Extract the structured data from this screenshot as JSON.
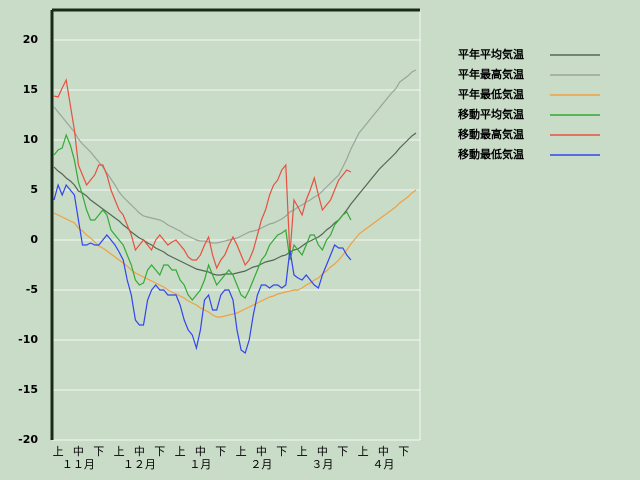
{
  "chart_data": {
    "type": "line",
    "categories": [
      null,
      "上",
      null,
      null,
      null,
      null,
      "中",
      null,
      null,
      null,
      null,
      "下",
      null,
      null,
      null,
      null,
      "上",
      null,
      null,
      null,
      null,
      "中",
      null,
      null,
      null,
      null,
      "下",
      null,
      null,
      null,
      null,
      "上",
      null,
      null,
      null,
      null,
      "中",
      null,
      null,
      null,
      null,
      "下",
      null,
      null,
      null,
      null,
      "上",
      null,
      null,
      null,
      null,
      "中",
      null,
      null,
      null,
      null,
      "下",
      null,
      null,
      null,
      null,
      "上",
      null,
      null,
      null,
      null,
      "中",
      null,
      null,
      null,
      null,
      "下",
      null,
      null,
      null,
      null,
      "上",
      null,
      null,
      null,
      null,
      "中",
      null,
      null,
      null,
      null,
      "下",
      null,
      null,
      null
    ],
    "month_labels": [
      "１１月",
      "１２月",
      "１月",
      "２月",
      "３月",
      "４月"
    ],
    "ylim": [
      -20,
      23
    ],
    "yticks": [
      -20,
      -15,
      -10,
      -5,
      0,
      5,
      10,
      15,
      20
    ],
    "grid": true,
    "series": [
      {
        "name": "平年平均気温",
        "color": "#556655",
        "values": [
          7.3,
          6.9,
          6.6,
          6.2,
          5.9,
          5.5,
          4.9,
          4.7,
          4.4,
          4.0,
          3.7,
          3.4,
          3.1,
          2.8,
          2.5,
          2.2,
          1.9,
          1.5,
          1.2,
          0.8,
          0.5,
          0.2,
          0,
          -0.3,
          -0.5,
          -0.8,
          -1,
          -1.2,
          -1.5,
          -1.7,
          -1.9,
          -2.1,
          -2.3,
          -2.5,
          -2.7,
          -2.9,
          -3,
          -3.1,
          -3.2,
          -3.4,
          -3.5,
          -3.5,
          -3.4,
          -3.4,
          -3.4,
          -3.3,
          -3.2,
          -3.1,
          -2.9,
          -2.7,
          -2.6,
          -2.4,
          -2.2,
          -2.1,
          -2,
          -1.8,
          -1.6,
          -1.5,
          -1.2,
          -1,
          -0.9,
          -0.6,
          -0.3,
          -0.1,
          0.1,
          0.3,
          0.6,
          1,
          1.3,
          1.7,
          2,
          2.5,
          3,
          3.6,
          4.1,
          4.6,
          5.1,
          5.6,
          6.1,
          6.6,
          7.1,
          7.5,
          7.9,
          8.3,
          8.7,
          9.2,
          9.6,
          10,
          10.4,
          10.7
        ]
      },
      {
        "name": "平年最高気温",
        "color": "#9aa59a",
        "values": [
          13.3,
          12.8,
          12.3,
          11.8,
          11.3,
          10.8,
          10.1,
          9.6,
          9.2,
          8.8,
          8.3,
          7.8,
          7.3,
          6.7,
          6.1,
          5.5,
          4.8,
          4.3,
          3.9,
          3.5,
          3.1,
          2.7,
          2.4,
          2.3,
          2.2,
          2.1,
          2.0,
          1.8,
          1.5,
          1.3,
          1.1,
          0.9,
          0.6,
          0.4,
          0.2,
          0,
          -0.1,
          -0.1,
          -0.2,
          -0.3,
          -0.3,
          -0.2,
          -0.1,
          0,
          0.1,
          0.2,
          0.4,
          0.6,
          0.8,
          0.9,
          1.0,
          1.2,
          1.4,
          1.6,
          1.7,
          1.9,
          2.1,
          2.4,
          2.8,
          3.0,
          3.3,
          3.5,
          3.8,
          4.0,
          4.3,
          4.5,
          4.9,
          5.3,
          5.7,
          6.1,
          6.5,
          7.3,
          8.1,
          9.1,
          9.9,
          10.7,
          11.2,
          11.7,
          12.2,
          12.7,
          13.2,
          13.7,
          14.2,
          14.7,
          15.1,
          15.8,
          16.1,
          16.4,
          16.8,
          17.0
        ]
      },
      {
        "name": "平年最低気温",
        "color": "#f0a040",
        "values": [
          2.7,
          2.5,
          2.3,
          2.1,
          1.9,
          1.7,
          1.2,
          0.9,
          0.5,
          0.2,
          -0.2,
          -0.6,
          -0.8,
          -1.1,
          -1.4,
          -1.7,
          -2,
          -2.3,
          -2.6,
          -3,
          -3.3,
          -3.5,
          -3.7,
          -3.9,
          -4.1,
          -4.3,
          -4.5,
          -4.7,
          -5,
          -5.2,
          -5.4,
          -5.6,
          -5.8,
          -6.1,
          -6.3,
          -6.5,
          -6.8,
          -7,
          -7.2,
          -7.5,
          -7.7,
          -7.7,
          -7.6,
          -7.5,
          -7.4,
          -7.3,
          -7.1,
          -6.9,
          -6.7,
          -6.5,
          -6.3,
          -6.1,
          -5.9,
          -5.7,
          -5.6,
          -5.4,
          -5.3,
          -5.2,
          -5.1,
          -5,
          -5,
          -4.8,
          -4.5,
          -4.3,
          -4.0,
          -3.8,
          -3.4,
          -3.1,
          -2.7,
          -2.4,
          -2,
          -1.5,
          -1,
          -0.4,
          0.1,
          0.6,
          0.9,
          1.2,
          1.5,
          1.8,
          2.1,
          2.4,
          2.7,
          3.0,
          3.3,
          3.7,
          4.0,
          4.3,
          4.7,
          5.0
        ]
      },
      {
        "name": "移動平均気温",
        "color": "#33aa33",
        "values": [
          8.5,
          9,
          9.2,
          10.5,
          9.5,
          8,
          5.8,
          4.5,
          3,
          2,
          2,
          2.5,
          3,
          2.5,
          1,
          0.5,
          0,
          -0.5,
          -1.5,
          -2.5,
          -4,
          -4.5,
          -4.3,
          -3,
          -2.5,
          -3,
          -3.5,
          -2.5,
          -2.5,
          -3,
          -3,
          -4,
          -4.5,
          -5.5,
          -6,
          -5.5,
          -5,
          -4,
          -2.5,
          -3.5,
          -4.5,
          -4,
          -3.5,
          -3,
          -3.5,
          -4.5,
          -5.5,
          -5.8,
          -5,
          -4,
          -3,
          -2,
          -1.5,
          -0.5,
          0,
          0.5,
          0.7,
          1,
          -2,
          -0.5,
          -1,
          -1.5,
          -0.5,
          0.5,
          0.5,
          -0.5,
          -1,
          0,
          0.5,
          1.5,
          2,
          2.5,
          2.8,
          2,
          null,
          null,
          null,
          null,
          null,
          null,
          null,
          null,
          null,
          null,
          null,
          null,
          null,
          null,
          null,
          null
        ]
      },
      {
        "name": "移動最高気温",
        "color": "#e85040",
        "values": [
          14.4,
          14.3,
          15.2,
          16,
          13.5,
          11,
          7.5,
          6.5,
          5.5,
          6,
          6.5,
          7.5,
          7.5,
          6.5,
          5,
          4,
          3,
          2.5,
          1.5,
          0.5,
          -1,
          -0.5,
          0,
          -0.5,
          -1,
          0,
          0.5,
          0,
          -0.5,
          -0.2,
          0,
          -0.5,
          -1,
          -1.7,
          -2,
          -2,
          -1.5,
          -0.5,
          0.3,
          -1.5,
          -2.8,
          -2,
          -1.5,
          -0.5,
          0.3,
          -0.5,
          -1.5,
          -2.5,
          -2,
          -1,
          0.5,
          2,
          3,
          4.5,
          5.5,
          6,
          7,
          7.5,
          -1.5,
          4,
          3.3,
          2.5,
          4,
          5,
          6.2,
          4.5,
          3,
          3.5,
          4,
          5,
          6,
          6.5,
          7,
          6.8,
          null,
          null,
          null,
          null,
          null,
          null,
          null,
          null,
          null,
          null,
          null,
          null,
          null,
          null,
          null,
          null
        ]
      },
      {
        "name": "移動最低気温",
        "color": "#3344ee",
        "values": [
          4,
          5.5,
          4.5,
          5.5,
          5,
          4.5,
          2,
          -0.5,
          -0.5,
          -0.3,
          -0.5,
          -0.5,
          0,
          0.5,
          0,
          -0.5,
          -1.2,
          -2,
          -4,
          -5.5,
          -8,
          -8.5,
          -8.5,
          -6,
          -5,
          -4.5,
          -5,
          -5,
          -5.5,
          -5.5,
          -5.5,
          -6.5,
          -8,
          -9,
          -9.5,
          -10.8,
          -9,
          -6,
          -5.5,
          -7,
          -7,
          -5.5,
          -5,
          -5,
          -6,
          -9,
          -11,
          -11.3,
          -10,
          -7.5,
          -5.5,
          -4.5,
          -4.5,
          -4.8,
          -4.5,
          -4.5,
          -4.8,
          -4.5,
          -1,
          -3.5,
          -3.8,
          -4,
          -3.5,
          -4,
          -4.5,
          -4.8,
          -3.5,
          -2.5,
          -1.5,
          -0.5,
          -0.8,
          -0.8,
          -1.5,
          -2,
          null,
          null,
          null,
          null,
          null,
          null,
          null,
          null,
          null,
          null,
          null,
          null,
          null,
          null,
          null,
          null
        ]
      }
    ]
  }
}
